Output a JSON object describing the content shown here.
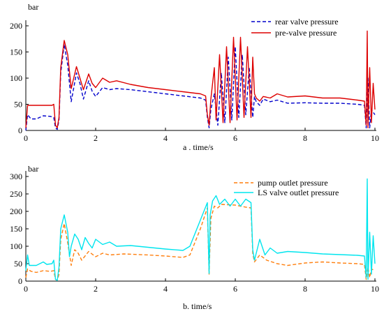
{
  "chart_data": [
    {
      "type": "line",
      "panel_label": "a .  time/s",
      "ylabel": "bar",
      "xlim": [
        0,
        10
      ],
      "ylim": [
        0,
        200
      ],
      "x_ticks": [
        0,
        2,
        4,
        6,
        8,
        10
      ],
      "y_ticks": [
        0,
        50,
        100,
        150,
        200
      ],
      "grid": false,
      "legend": "top-right",
      "series": [
        {
          "name": "rear valve pressure",
          "color": "#0000cc",
          "style": "dashed",
          "points": [
            [
              0,
              0
            ],
            [
              0.05,
              30
            ],
            [
              0.15,
              22
            ],
            [
              0.3,
              22
            ],
            [
              0.5,
              28
            ],
            [
              0.7,
              27
            ],
            [
              0.8,
              25
            ],
            [
              0.85,
              5
            ],
            [
              0.9,
              2
            ],
            [
              0.95,
              20
            ],
            [
              1.0,
              110
            ],
            [
              1.1,
              165
            ],
            [
              1.2,
              125
            ],
            [
              1.3,
              55
            ],
            [
              1.45,
              110
            ],
            [
              1.55,
              90
            ],
            [
              1.65,
              60
            ],
            [
              1.8,
              95
            ],
            [
              1.9,
              75
            ],
            [
              2.0,
              65
            ],
            [
              2.2,
              82
            ],
            [
              2.4,
              78
            ],
            [
              2.6,
              80
            ],
            [
              3.0,
              78
            ],
            [
              3.5,
              74
            ],
            [
              4.0,
              70
            ],
            [
              4.5,
              66
            ],
            [
              5.0,
              62
            ],
            [
              5.15,
              58
            ],
            [
              5.2,
              25
            ],
            [
              5.25,
              5
            ],
            [
              5.3,
              40
            ],
            [
              5.4,
              70
            ],
            [
              5.5,
              10
            ],
            [
              5.6,
              110
            ],
            [
              5.7,
              15
            ],
            [
              5.8,
              140
            ],
            [
              5.9,
              20
            ],
            [
              6.0,
              160
            ],
            [
              6.1,
              25
            ],
            [
              6.2,
              145
            ],
            [
              6.3,
              30
            ],
            [
              6.4,
              120
            ],
            [
              6.5,
              25
            ],
            [
              6.55,
              65
            ],
            [
              6.6,
              55
            ],
            [
              6.7,
              48
            ],
            [
              6.8,
              60
            ],
            [
              7.0,
              55
            ],
            [
              7.2,
              58
            ],
            [
              7.5,
              52
            ],
            [
              8.0,
              53
            ],
            [
              8.5,
              52
            ],
            [
              9.0,
              52
            ],
            [
              9.5,
              50
            ],
            [
              9.7,
              48
            ],
            [
              9.75,
              5
            ],
            [
              9.8,
              100
            ],
            [
              9.85,
              5
            ],
            [
              9.9,
              40
            ],
            [
              10,
              30
            ]
          ]
        },
        {
          "name": "pre-valve pressure",
          "color": "#dd0000",
          "style": "solid",
          "points": [
            [
              0,
              5
            ],
            [
              0.05,
              48
            ],
            [
              0.2,
              48
            ],
            [
              0.5,
              48
            ],
            [
              0.75,
              48
            ],
            [
              0.8,
              50
            ],
            [
              0.85,
              10
            ],
            [
              0.9,
              5
            ],
            [
              0.95,
              25
            ],
            [
              1.0,
              120
            ],
            [
              1.1,
              172
            ],
            [
              1.2,
              145
            ],
            [
              1.3,
              80
            ],
            [
              1.45,
              122
            ],
            [
              1.55,
              100
            ],
            [
              1.65,
              78
            ],
            [
              1.8,
              108
            ],
            [
              1.9,
              90
            ],
            [
              2.0,
              82
            ],
            [
              2.2,
              100
            ],
            [
              2.4,
              92
            ],
            [
              2.6,
              95
            ],
            [
              3.0,
              88
            ],
            [
              3.5,
              82
            ],
            [
              4.0,
              78
            ],
            [
              4.5,
              74
            ],
            [
              5.0,
              70
            ],
            [
              5.15,
              66
            ],
            [
              5.2,
              30
            ],
            [
              5.25,
              10
            ],
            [
              5.3,
              60
            ],
            [
              5.4,
              120
            ],
            [
              5.45,
              20
            ],
            [
              5.55,
              145
            ],
            [
              5.65,
              15
            ],
            [
              5.75,
              160
            ],
            [
              5.85,
              15
            ],
            [
              5.95,
              178
            ],
            [
              6.05,
              20
            ],
            [
              6.15,
              178
            ],
            [
              6.25,
              25
            ],
            [
              6.35,
              160
            ],
            [
              6.45,
              25
            ],
            [
              6.5,
              140
            ],
            [
              6.55,
              70
            ],
            [
              6.6,
              62
            ],
            [
              6.7,
              56
            ],
            [
              6.8,
              65
            ],
            [
              7.0,
              62
            ],
            [
              7.2,
              70
            ],
            [
              7.5,
              64
            ],
            [
              8.0,
              66
            ],
            [
              8.5,
              62
            ],
            [
              9.0,
              62
            ],
            [
              9.5,
              58
            ],
            [
              9.7,
              56
            ],
            [
              9.75,
              10
            ],
            [
              9.78,
              190
            ],
            [
              9.8,
              5
            ],
            [
              9.85,
              120
            ],
            [
              9.9,
              15
            ],
            [
              9.95,
              90
            ],
            [
              10,
              40
            ]
          ]
        }
      ]
    },
    {
      "type": "line",
      "panel_label": "b. time/s",
      "ylabel": "bar",
      "xlim": [
        0,
        10
      ],
      "ylim": [
        0,
        300
      ],
      "x_ticks": [
        0,
        2,
        4,
        6,
        8,
        10
      ],
      "y_ticks": [
        0,
        50,
        100,
        150,
        200,
        250,
        300
      ],
      "grid": false,
      "legend": "top-right",
      "series": [
        {
          "name": "pump outlet pressure",
          "color": "#ff7f0e",
          "style": "dashed",
          "points": [
            [
              0,
              10
            ],
            [
              0.05,
              35
            ],
            [
              0.15,
              28
            ],
            [
              0.3,
              25
            ],
            [
              0.5,
              30
            ],
            [
              0.7,
              28
            ],
            [
              0.8,
              30
            ],
            [
              0.85,
              5
            ],
            [
              0.9,
              2
            ],
            [
              0.95,
              20
            ],
            [
              1.0,
              120
            ],
            [
              1.1,
              165
            ],
            [
              1.2,
              110
            ],
            [
              1.3,
              45
            ],
            [
              1.4,
              90
            ],
            [
              1.5,
              80
            ],
            [
              1.6,
              60
            ],
            [
              1.8,
              85
            ],
            [
              2.0,
              70
            ],
            [
              2.2,
              80
            ],
            [
              2.4,
              75
            ],
            [
              2.8,
              78
            ],
            [
              3.5,
              75
            ],
            [
              4.0,
              72
            ],
            [
              4.5,
              68
            ],
            [
              4.7,
              75
            ],
            [
              5.0,
              150
            ],
            [
              5.2,
              210
            ],
            [
              5.25,
              20
            ],
            [
              5.3,
              180
            ],
            [
              5.4,
              215
            ],
            [
              5.5,
              210
            ],
            [
              5.6,
              220
            ],
            [
              6.0,
              218
            ],
            [
              6.3,
              212
            ],
            [
              6.45,
              210
            ],
            [
              6.5,
              80
            ],
            [
              6.55,
              55
            ],
            [
              6.7,
              75
            ],
            [
              6.9,
              60
            ],
            [
              7.2,
              50
            ],
            [
              7.5,
              45
            ],
            [
              8.0,
              52
            ],
            [
              8.5,
              55
            ],
            [
              9.0,
              52
            ],
            [
              9.5,
              50
            ],
            [
              9.7,
              48
            ],
            [
              9.75,
              5
            ],
            [
              9.8,
              40
            ],
            [
              9.85,
              10
            ],
            [
              9.9,
              35
            ],
            [
              10,
              30
            ]
          ]
        },
        {
          "name": "LS valve outlet pressure",
          "color": "#00e5ee",
          "style": "solid",
          "points": [
            [
              0,
              30
            ],
            [
              0.05,
              75
            ],
            [
              0.1,
              45
            ],
            [
              0.3,
              45
            ],
            [
              0.5,
              55
            ],
            [
              0.6,
              48
            ],
            [
              0.75,
              50
            ],
            [
              0.8,
              60
            ],
            [
              0.85,
              5
            ],
            [
              0.9,
              2
            ],
            [
              0.95,
              40
            ],
            [
              1.0,
              150
            ],
            [
              1.1,
              190
            ],
            [
              1.2,
              140
            ],
            [
              1.25,
              70
            ],
            [
              1.3,
              100
            ],
            [
              1.4,
              135
            ],
            [
              1.5,
              120
            ],
            [
              1.6,
              90
            ],
            [
              1.7,
              125
            ],
            [
              1.8,
              108
            ],
            [
              1.9,
              95
            ],
            [
              2.0,
              120
            ],
            [
              2.2,
              105
            ],
            [
              2.4,
              112
            ],
            [
              2.6,
              100
            ],
            [
              3.0,
              102
            ],
            [
              3.5,
              97
            ],
            [
              4.0,
              92
            ],
            [
              4.5,
              88
            ],
            [
              4.7,
              100
            ],
            [
              5.0,
              175
            ],
            [
              5.2,
              225
            ],
            [
              5.25,
              22
            ],
            [
              5.28,
              190
            ],
            [
              5.35,
              230
            ],
            [
              5.45,
              245
            ],
            [
              5.55,
              220
            ],
            [
              5.7,
              235
            ],
            [
              5.85,
              215
            ],
            [
              6.0,
              235
            ],
            [
              6.15,
              215
            ],
            [
              6.3,
              235
            ],
            [
              6.45,
              225
            ],
            [
              6.5,
              90
            ],
            [
              6.55,
              60
            ],
            [
              6.7,
              120
            ],
            [
              6.85,
              75
            ],
            [
              7.0,
              95
            ],
            [
              7.2,
              80
            ],
            [
              7.5,
              85
            ],
            [
              8.0,
              82
            ],
            [
              8.5,
              78
            ],
            [
              9.0,
              76
            ],
            [
              9.5,
              74
            ],
            [
              9.7,
              72
            ],
            [
              9.75,
              10
            ],
            [
              9.78,
              293
            ],
            [
              9.8,
              5
            ],
            [
              9.85,
              140
            ],
            [
              9.9,
              20
            ],
            [
              9.95,
              130
            ],
            [
              10,
              50
            ]
          ]
        }
      ]
    }
  ]
}
